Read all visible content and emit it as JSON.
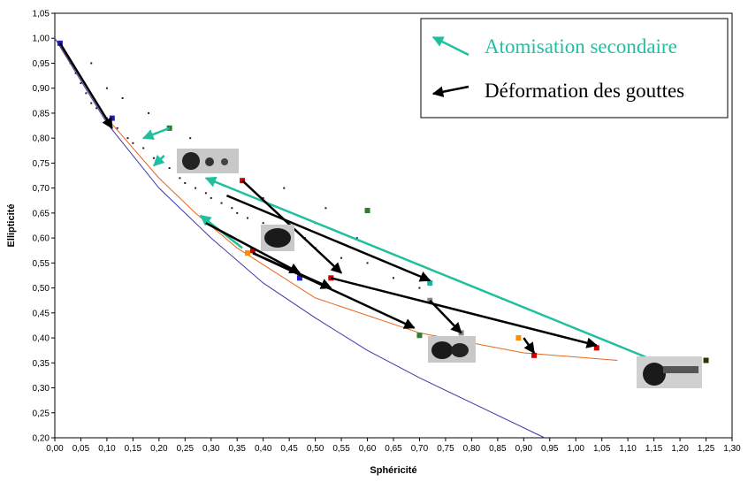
{
  "chart_data": {
    "type": "scatter",
    "x_label": "Sphéricité",
    "y_label": "Ellipticité",
    "xlim": [
      0,
      1.3
    ],
    "ylim": [
      0.2,
      1.05
    ],
    "xticks": [
      {
        "value": 0,
        "label": "0,00"
      },
      {
        "value": 0.05,
        "label": "0,05"
      },
      {
        "value": 0.1,
        "label": "0,10"
      },
      {
        "value": 0.15,
        "label": "0,15"
      },
      {
        "value": 0.2,
        "label": "0,20"
      },
      {
        "value": 0.25,
        "label": "0,25"
      },
      {
        "value": 0.3,
        "label": "0,30"
      },
      {
        "value": 0.35,
        "label": "0,35"
      },
      {
        "value": 0.4,
        "label": "0,40"
      },
      {
        "value": 0.45,
        "label": "0,45"
      },
      {
        "value": 0.5,
        "label": "0,50"
      },
      {
        "value": 0.55,
        "label": "0,55"
      },
      {
        "value": 0.6,
        "label": "0,60"
      },
      {
        "value": 0.65,
        "label": "0,65"
      },
      {
        "value": 0.7,
        "label": "0,70"
      },
      {
        "value": 0.75,
        "label": "0,75"
      },
      {
        "value": 0.8,
        "label": "0,80"
      },
      {
        "value": 0.85,
        "label": "0,85"
      },
      {
        "value": 0.9,
        "label": "0,90"
      },
      {
        "value": 0.95,
        "label": "0,95"
      },
      {
        "value": 1,
        "label": "1,00"
      },
      {
        "value": 1.05,
        "label": "1,05"
      },
      {
        "value": 1.1,
        "label": "1,10"
      },
      {
        "value": 1.15,
        "label": "1,15"
      },
      {
        "value": 1.2,
        "label": "1,20"
      },
      {
        "value": 1.25,
        "label": "1,25"
      },
      {
        "value": 1.3,
        "label": "1,30"
      }
    ],
    "yticks": [
      {
        "value": 0.2,
        "label": "0,20"
      },
      {
        "value": 0.25,
        "label": "0,25"
      },
      {
        "value": 0.3,
        "label": "0,30"
      },
      {
        "value": 0.35,
        "label": "0,35"
      },
      {
        "value": 0.4,
        "label": "0,40"
      },
      {
        "value": 0.45,
        "label": "0,45"
      },
      {
        "value": 0.5,
        "label": "0,50"
      },
      {
        "value": 0.55,
        "label": "0,55"
      },
      {
        "value": 0.6,
        "label": "0,60"
      },
      {
        "value": 0.65,
        "label": "0,65"
      },
      {
        "value": 0.7,
        "label": "0,70"
      },
      {
        "value": 0.75,
        "label": "0,75"
      },
      {
        "value": 0.8,
        "label": "0,80"
      },
      {
        "value": 0.85,
        "label": "0,85"
      },
      {
        "value": 0.9,
        "label": "0,90"
      },
      {
        "value": 0.95,
        "label": "0,95"
      },
      {
        "value": 1,
        "label": "1,00"
      },
      {
        "value": 1.05,
        "label": "1,05"
      }
    ],
    "cloud": {
      "color": "#3a1030",
      "x": [
        0.01,
        0.02,
        0.03,
        0.04,
        0.05,
        0.06,
        0.07,
        0.08,
        0.1,
        0.12,
        0.14,
        0.15,
        0.17,
        0.19,
        0.2,
        0.22,
        0.24,
        0.25,
        0.27,
        0.29,
        0.3,
        0.32,
        0.34,
        0.35,
        0.37,
        0.4,
        0.42,
        0.45,
        0.48,
        0.5,
        0.55,
        0.6,
        0.65,
        0.7,
        0.07,
        0.13,
        0.18,
        0.26,
        0.33,
        0.44,
        0.52,
        0.58,
        0.1,
        0.22,
        0.31,
        0.4,
        0.5,
        0.62
      ],
      "values": [
        0.99,
        0.97,
        0.95,
        0.93,
        0.91,
        0.89,
        0.87,
        0.86,
        0.84,
        0.82,
        0.8,
        0.79,
        0.78,
        0.76,
        0.75,
        0.74,
        0.72,
        0.71,
        0.7,
        0.69,
        0.68,
        0.67,
        0.66,
        0.65,
        0.64,
        0.63,
        0.62,
        0.61,
        0.6,
        0.58,
        0.56,
        0.55,
        0.52,
        0.5,
        0.95,
        0.88,
        0.85,
        0.8,
        0.74,
        0.7,
        0.66,
        0.6,
        0.9,
        0.82,
        0.77,
        0.68,
        0.63,
        0.58
      ]
    },
    "curves": [
      {
        "color": "#e8661c",
        "x": [
          0,
          0.1,
          0.2,
          0.27,
          0.35,
          0.5,
          0.7,
          0.9,
          1.08
        ],
        "values": [
          1,
          0.84,
          0.72,
          0.65,
          0.58,
          0.48,
          0.41,
          0.37,
          0.355
        ]
      },
      {
        "color": "#3a3aa8",
        "x": [
          0,
          0.1,
          0.2,
          0.3,
          0.4,
          0.5,
          0.6,
          0.7,
          0.8,
          0.94
        ],
        "values": [
          1,
          0.83,
          0.7,
          0.6,
          0.51,
          0.44,
          0.375,
          0.32,
          0.27,
          0.2
        ]
      }
    ],
    "markers": [
      {
        "color": "#cc0000",
        "x": [
          0.36,
          0.53,
          0.38,
          0.92,
          1.04
        ],
        "values": [
          0.715,
          0.52,
          0.575,
          0.365,
          0.38
        ]
      },
      {
        "color": "#ff8c00",
        "x": [
          0.89,
          0.37
        ],
        "values": [
          0.4,
          0.57
        ]
      },
      {
        "color": "#2e7d32",
        "x": [
          0.6,
          0.22,
          0.7
        ],
        "values": [
          0.655,
          0.82,
          0.405
        ]
      },
      {
        "color": "#333300",
        "x": [
          1.25
        ],
        "values": [
          0.355
        ]
      },
      {
        "color": "#2020c0",
        "x": [
          0.47,
          0.01,
          0.11
        ],
        "values": [
          0.52,
          0.99,
          0.84
        ]
      },
      {
        "color": "#20b0a0",
        "x": [
          0.72
        ],
        "values": [
          0.51
        ]
      },
      {
        "color": "#888888",
        "x": [
          0.72,
          0.78
        ],
        "values": [
          0.475,
          0.41
        ]
      }
    ],
    "series": [
      {
        "name": "Atomisation secondaire",
        "color": "#1fbf9f",
        "x0": [
          0.22,
          0.21,
          1.15,
          0.36
        ],
        "y0": [
          0.82,
          0.765,
          0.355,
          0.58
        ],
        "x1": [
          0.17,
          0.19,
          0.29,
          0.28
        ],
        "y1": [
          0.8,
          0.745,
          0.72,
          0.645
        ]
      },
      {
        "name": "Déformation des gouttes",
        "color": "#000000",
        "x0": [
          0.01,
          0.36,
          0.33,
          0.29,
          0.38,
          0.38,
          0.53,
          0.72,
          0.9
        ],
        "y0": [
          0.99,
          0.715,
          0.685,
          0.63,
          0.57,
          0.57,
          0.52,
          0.475,
          0.4
        ],
        "x1": [
          0.11,
          0.55,
          0.72,
          0.47,
          0.53,
          0.69,
          1.04,
          0.78,
          0.92
        ],
        "y1": [
          0.82,
          0.53,
          0.515,
          0.53,
          0.5,
          0.42,
          0.385,
          0.41,
          0.37
        ]
      }
    ]
  }
}
